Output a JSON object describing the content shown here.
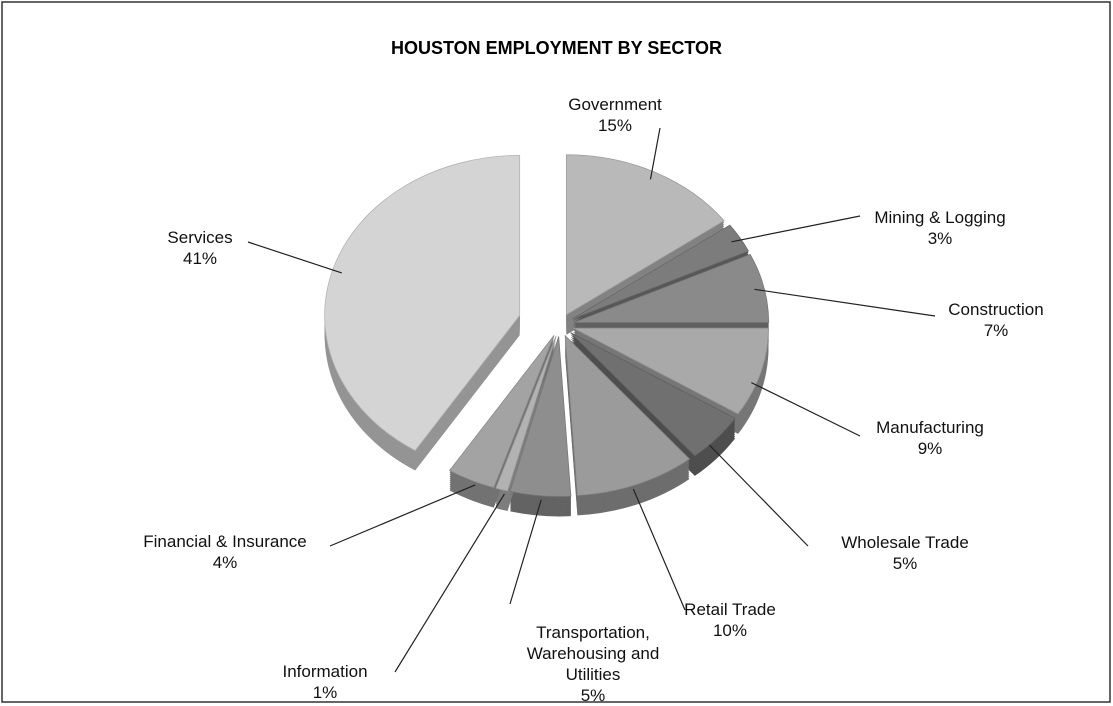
{
  "chart_data": {
    "type": "pie",
    "title": "HOUSTON EMPLOYMENT BY SECTOR",
    "categories": [
      "Government",
      "Mining & Logging",
      "Construction",
      "Manufacturing",
      "Wholesale Trade",
      "Retail Trade",
      "Transportation, Warehousing and Utilities",
      "Information",
      "Financial & Insurance",
      "Services"
    ],
    "values": [
      15,
      3,
      7,
      9,
      5,
      10,
      5,
      1,
      4,
      41
    ],
    "value_labels": [
      "15%",
      "3%",
      "7%",
      "9%",
      "5%",
      "10%",
      "5%",
      "1%",
      "4%",
      "41%"
    ],
    "colors": [
      "#b9b9b9",
      "#7c7c7c",
      "#8a8a8a",
      "#a9a9a9",
      "#707070",
      "#9b9b9b",
      "#8e8e8e",
      "#b2b2b2",
      "#a3a3a3",
      "#d4d4d4"
    ]
  }
}
